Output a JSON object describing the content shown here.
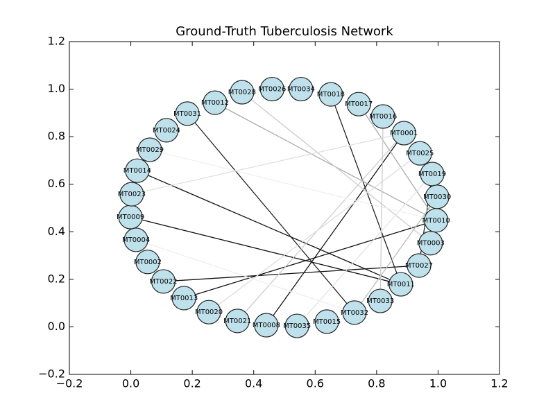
{
  "chart_data": {
    "type": "network",
    "title": "Ground-Truth Tuberculosis Network",
    "xlim": [
      -0.2,
      1.2
    ],
    "ylim": [
      -0.2,
      1.2
    ],
    "xticks": [
      {
        "value": -0.2,
        "label": "−0.2"
      },
      {
        "value": 0,
        "label": "0.0"
      },
      0.2,
      0.4,
      0.6,
      0.8,
      {
        "value": 1,
        "label": "1.0"
      },
      1.2
    ],
    "yticks": [
      {
        "value": -0.2,
        "label": "−0.2"
      },
      {
        "value": 0,
        "label": "0.0"
      },
      0.2,
      0.4,
      0.6,
      0.8,
      {
        "value": 1,
        "label": "1.0"
      },
      1.2
    ],
    "node_color": "#bfe1ec",
    "nodes": [
      {
        "label": "MT0026",
        "x": 0.46,
        "y": 1.0
      },
      {
        "label": "MT0034",
        "x": 0.554,
        "y": 1.0
      },
      {
        "label": "MT0018",
        "x": 0.651,
        "y": 0.978
      },
      {
        "label": "MT0017",
        "x": 0.742,
        "y": 0.937
      },
      {
        "label": "MT0016",
        "x": 0.821,
        "y": 0.885
      },
      {
        "label": "MT0001",
        "x": 0.889,
        "y": 0.815
      },
      {
        "label": "MT0025",
        "x": 0.941,
        "y": 0.73
      },
      {
        "label": "MT0019",
        "x": 0.981,
        "y": 0.643
      },
      {
        "label": "MT0030",
        "x": 0.997,
        "y": 0.547
      },
      {
        "label": "MT0010",
        "x": 0.994,
        "y": 0.448
      },
      {
        "label": "MT0003",
        "x": 0.976,
        "y": 0.352
      },
      {
        "label": "MT0027",
        "x": 0.938,
        "y": 0.258
      },
      {
        "label": "MT0011",
        "x": 0.879,
        "y": 0.179
      },
      {
        "label": "MT0033",
        "x": 0.812,
        "y": 0.109
      },
      {
        "label": "MT0032",
        "x": 0.728,
        "y": 0.06
      },
      {
        "label": "MT0015",
        "x": 0.638,
        "y": 0.022
      },
      {
        "label": "MT0035",
        "x": 0.541,
        "y": 0.004
      },
      {
        "label": "MT0008",
        "x": 0.441,
        "y": 0.007
      },
      {
        "label": "MT0021",
        "x": 0.347,
        "y": 0.025
      },
      {
        "label": "MT0020",
        "x": 0.254,
        "y": 0.062
      },
      {
        "label": "MT0013",
        "x": 0.173,
        "y": 0.121
      },
      {
        "label": "MT0022",
        "x": 0.106,
        "y": 0.191
      },
      {
        "label": "MT0002",
        "x": 0.055,
        "y": 0.273
      },
      {
        "label": "MT0004",
        "x": 0.017,
        "y": 0.366
      },
      {
        "label": "MT0009",
        "x": -0.001,
        "y": 0.462
      },
      {
        "label": "MT0023",
        "x": 0.003,
        "y": 0.558
      },
      {
        "label": "MT0014",
        "x": 0.021,
        "y": 0.657
      },
      {
        "label": "MT0029",
        "x": 0.062,
        "y": 0.745
      },
      {
        "label": "MT0024",
        "x": 0.116,
        "y": 0.827
      },
      {
        "label": "MT0031",
        "x": 0.184,
        "y": 0.897
      },
      {
        "label": "MT0012",
        "x": 0.274,
        "y": 0.943
      },
      {
        "label": "MT0028",
        "x": 0.362,
        "y": 0.987
      }
    ],
    "edges": [
      {
        "source": 26,
        "target": 12,
        "color": "#111111"
      },
      {
        "source": 24,
        "target": 12,
        "color": "#111111"
      },
      {
        "source": 21,
        "target": 11,
        "color": "#111111"
      },
      {
        "source": 20,
        "target": 9,
        "color": "#111111"
      },
      {
        "source": 17,
        "target": 5,
        "color": "#111111"
      },
      {
        "source": 29,
        "target": 14,
        "color": "#222222"
      },
      {
        "source": 2,
        "target": 12,
        "color": "#222222"
      },
      {
        "source": 11,
        "target": 7,
        "color": "#222222"
      },
      {
        "source": 30,
        "target": 9,
        "color": "#aaaaaa"
      },
      {
        "source": 31,
        "target": 10,
        "color": "#cccccc"
      },
      {
        "source": 3,
        "target": 9,
        "color": "#aaaaaa"
      },
      {
        "source": 25,
        "target": 5,
        "color": "#e0e0e0"
      },
      {
        "source": 18,
        "target": 5,
        "color": "#cccccc"
      },
      {
        "source": 19,
        "target": 6,
        "color": "#dddddd"
      },
      {
        "source": 16,
        "target": 7,
        "color": "#e4e4e4"
      },
      {
        "source": 14,
        "target": 8,
        "color": "#bbbbbb"
      },
      {
        "source": 27,
        "target": 9,
        "color": "#f0f0f0"
      },
      {
        "source": 4,
        "target": 13,
        "color": "#cccccc"
      },
      {
        "source": 23,
        "target": 14,
        "color": "#eeeeee"
      }
    ]
  }
}
